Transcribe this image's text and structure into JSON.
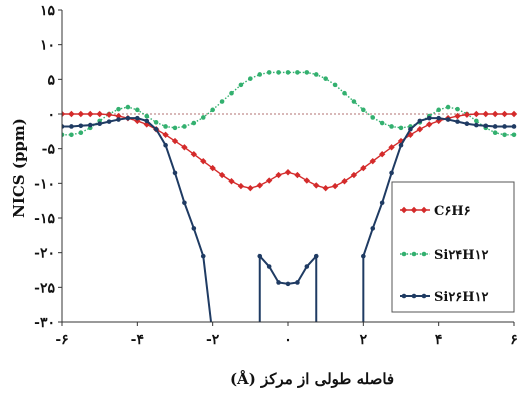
{
  "chart_data": {
    "type": "line",
    "title": "",
    "xlabel": "فاصله طولی از مرکز (Å)",
    "ylabel": "NICS (ppm)",
    "xlim": [
      -6,
      6
    ],
    "ylim": [
      -30,
      15
    ],
    "x_ticks": [
      -6,
      -4,
      -2,
      0,
      2,
      4,
      6
    ],
    "x_tick_labels": [
      "-۶",
      "-۴",
      "-۲",
      "۰",
      "۲",
      "۴",
      "۶"
    ],
    "y_ticks": [
      15,
      10,
      5,
      0,
      -5,
      -10,
      -15,
      -20,
      -25,
      -30
    ],
    "y_tick_labels": [
      "۱۵",
      "۱۰",
      "۵",
      "۰",
      "-۵",
      "-۱۰",
      "-۱۵",
      "-۲۰",
      "-۲۵",
      "-۳۰"
    ],
    "reference_line": 0,
    "legend_position": "right",
    "series": [
      {
        "name": "C۶H۶",
        "color": "#d42b2b",
        "marker": "diamond",
        "x": [
          -6,
          -5.75,
          -5.5,
          -5.25,
          -5,
          -4.75,
          -4.5,
          -4.25,
          -4,
          -3.75,
          -3.5,
          -3.25,
          -3,
          -2.75,
          -2.5,
          -2.25,
          -2,
          -1.75,
          -1.5,
          -1.25,
          -1,
          -0.75,
          -0.5,
          -0.25,
          0,
          0.25,
          0.5,
          0.75,
          1,
          1.25,
          1.5,
          1.75,
          2,
          2.25,
          2.5,
          2.75,
          3,
          3.25,
          3.5,
          3.75,
          4,
          4.25,
          4.5,
          4.75,
          5,
          5.25,
          5.5,
          5.75,
          6
        ],
        "y": [
          0,
          0,
          0,
          0,
          0,
          -0.1,
          -0.3,
          -0.6,
          -1,
          -1.5,
          -2.2,
          -3,
          -3.9,
          -4.8,
          -5.8,
          -6.8,
          -7.8,
          -8.8,
          -9.7,
          -10.4,
          -10.7,
          -10.3,
          -9.6,
          -8.8,
          -8.4,
          -8.8,
          -9.6,
          -10.3,
          -10.7,
          -10.4,
          -9.7,
          -8.8,
          -7.8,
          -6.8,
          -5.8,
          -4.8,
          -3.9,
          -3,
          -2.2,
          -1.5,
          -1,
          -0.6,
          -0.3,
          -0.1,
          0,
          0,
          0,
          0,
          0
        ]
      },
      {
        "name": "Si۲۴H۱۲",
        "color": "#33b06f",
        "marker": "circle",
        "x": [
          -6,
          -5.75,
          -5.5,
          -5.25,
          -5,
          -4.75,
          -4.5,
          -4.25,
          -4,
          -3.75,
          -3.5,
          -3.25,
          -3,
          -2.75,
          -2.5,
          -2.25,
          -2,
          -1.75,
          -1.5,
          -1.25,
          -1,
          -0.75,
          -0.5,
          -0.25,
          0,
          0.25,
          0.5,
          0.75,
          1,
          1.25,
          1.5,
          1.75,
          2,
          2.25,
          2.5,
          2.75,
          3,
          3.25,
          3.5,
          3.75,
          4,
          4.25,
          4.5,
          4.75,
          5,
          5.25,
          5.5,
          5.75,
          6
        ],
        "y": [
          -3,
          -3,
          -2.7,
          -2,
          -1,
          0,
          0.7,
          1,
          0.6,
          -0.3,
          -1.2,
          -1.8,
          -2,
          -1.8,
          -1.3,
          -0.5,
          0.6,
          1.8,
          3,
          4.2,
          5.1,
          5.7,
          6,
          6,
          6,
          6,
          6,
          5.7,
          5.1,
          4.2,
          3,
          1.8,
          0.6,
          -0.5,
          -1.3,
          -1.8,
          -2,
          -1.8,
          -1.2,
          -0.3,
          0.6,
          1,
          0.7,
          0,
          -1,
          -2,
          -2.7,
          -3,
          -3
        ]
      },
      {
        "name": "Si۲۶H۱۲",
        "color": "#1f3b63",
        "marker": "circle",
        "x": [
          -6,
          -5.75,
          -5.5,
          -5.25,
          -5,
          -4.75,
          -4.5,
          -4.25,
          -4,
          -3.75,
          -3.5,
          -3.25,
          -3,
          -2.75,
          -2.5,
          -2.25,
          -2,
          -2,
          -0.75,
          -0.75,
          -0.5,
          -0.25,
          0,
          0.25,
          0.5,
          0.75,
          0.75,
          2,
          2,
          2.25,
          2.5,
          2.75,
          3,
          3.25,
          3.5,
          3.75,
          4,
          4.25,
          4.5,
          4.75,
          5,
          5.25,
          5.5,
          5.75,
          6
        ],
        "y": [
          -1.8,
          -1.8,
          -1.7,
          -1.6,
          -1.4,
          -1.1,
          -0.8,
          -0.6,
          -0.6,
          -1,
          -2.2,
          -4.5,
          -8.5,
          -12.8,
          -16.5,
          -20.5,
          -32,
          -32,
          -32,
          -20.5,
          -22,
          -24.3,
          -24.5,
          -24.3,
          -22,
          -20.5,
          -32,
          -32,
          -20.5,
          -16.5,
          -12.8,
          -8.5,
          -4.5,
          -2.2,
          -1,
          -0.6,
          -0.6,
          -0.8,
          -1.1,
          -1.4,
          -1.6,
          -1.7,
          -1.8,
          -1.8,
          -1.8
        ]
      }
    ]
  }
}
